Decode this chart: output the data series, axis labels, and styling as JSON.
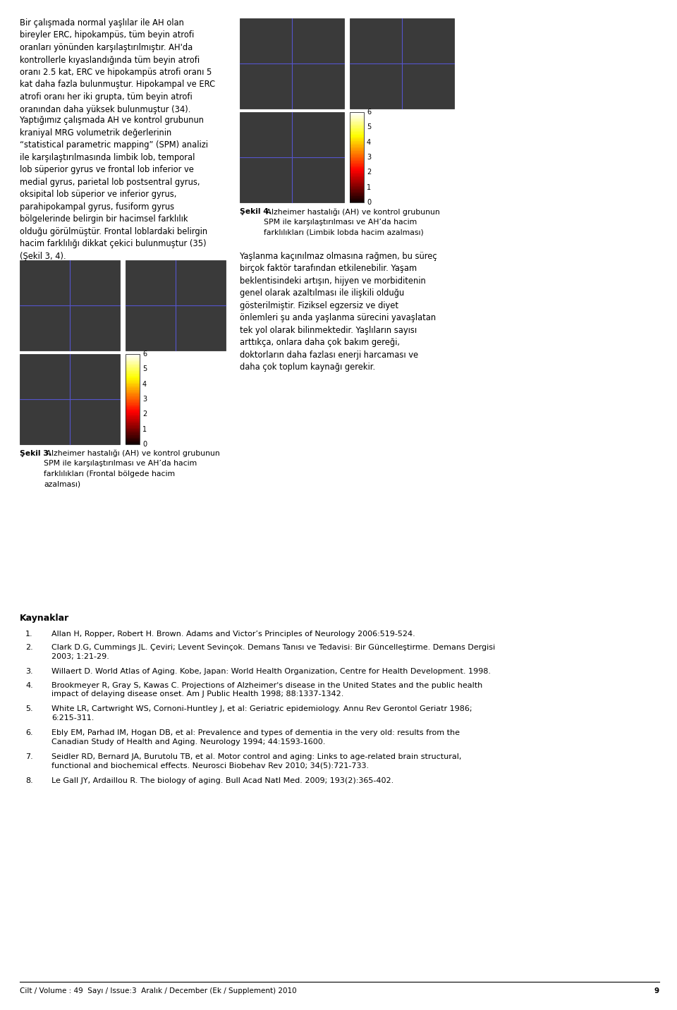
{
  "page_bg": "#ffffff",
  "text_color": "#000000",
  "font_size_body": 8.3,
  "font_size_caption": 7.8,
  "font_size_heading": 9.0,
  "font_size_footer": 7.5,
  "font_size_ref": 8.0,
  "para1": "Bir çalışmada normal yaşlılar ile AH olan bireyler ERC, hipokampüs, tüm beyin atrofi oranları yönünden karşılaştırılmıştır. AH'da kontrollerle kıyaslandığında tüm beyin atrofi oranı 2.5 kat, ERC ve hipokampüs atrofi oranı 5 kat daha fazla bulunmuştur. Hipokampal ve ERC atrofi oranı her iki grupta, tüm beyin atrofi oranından daha yüksek bulunmuştur (34).",
  "para2": "Yaptığımız çalışmada AH ve kontrol grubunun kraniyal MRG volumetrik değerlerinin “statistical parametric mapping” (SPM) analizi ile karşılaştırılmasında limbik lob, temporal lob süperior gyrus ve frontal lob inferior ve medial gyrus, parietal lob postsentral gyrus, oksipital lob süperior ve inferior gyrus, parahipokampal gyrus, fusiform gyrus bölgelerinde belirgin bir hacimsel farklılık olduğu görülmüştür. Frontal loblardaki belirgin hacim farklılığı dikkat çekici bulunmuştur (35) (Şekil 3, 4).",
  "sekil4_bold": "Şekil 4.",
  "sekil4_text": " Alzheimer hastalığı (AH) ve kontrol grubunun SPM ile karşılaştırılması ve AH’da hacim farklılıkları (Limbik lobda hacim azalması)",
  "para3": "Yaşlanma kaçınılmaz olmasına rağmen, bu süreç birçok faktör tarafından etkilenebilir. Yaşam beklentisindeki artışın, hijyen ve morbiditenin genel olarak azaltılması ile ilişkili olduğu gösterilmiştir. Fiziksel egzersiz ve diyet önlemleri şu anda yaşlanma sürecini yavaşlatan tek yol olarak bilinmektedir. Yaşlıların sayısı arttıkça, onlara daha çok bakım gereği, doktorların daha fazlası enerji harcaması ve daha çok toplum kaynağı gerekir.",
  "sekil3_bold": "Şekil 3.",
  "sekil3_text": " Alzheimer hastalığı (AH) ve kontrol grubunun SPM ile karşılaştırılması ve AH’da hacim farklılıkları (Frontal bölgede hacim azalması)",
  "kaynaklar_heading": "Kaynaklar",
  "references": [
    {
      "num": "1.",
      "text": "Allan H, Ropper, Robert H. Brown. Adams and Victor’s Principles of Neurology 2006:519-524."
    },
    {
      "num": "2.",
      "text": "Clark D.G, Cummings JL. Çeviri; Levent Sevinçok. Demans Tanısı ve Tedavisi: Bir Güncelleştirme. Demans Dergisi 2003; 1:21-29."
    },
    {
      "num": "3.",
      "text": "Willaert D. World Atlas of Aging. Kobe, Japan: World Health Organization, Centre for Health Development. 1998."
    },
    {
      "num": "4.",
      "text": "Brookmeyer R, Gray S, Kawas C. Projections of Alzheimer's disease in the United States and the public health impact of delaying disease onset. Am J Public Health 1998; 88:1337-1342."
    },
    {
      "num": "5.",
      "text": "White LR, Cartwright WS, Cornoni-Huntley J, et al: Geriatric epidemiology. Annu Rev Gerontol Geriatr 1986; 6:215-311."
    },
    {
      "num": "6.",
      "text": "Ebly EM, Parhad IM, Hogan DB, et al: Prevalence and types of dementia in the very old: results from the Canadian Study of Health and Aging. Neurology 1994; 44:1593-1600."
    },
    {
      "num": "7.",
      "text": "Seidler RD, Bernard JA, Burutolu TB, et al. Motor control and aging: Links to age-related brain structural, functional and biochemical effects. Neurosci Biobehav Rev 2010; 34(5):721-733."
    },
    {
      "num": "8.",
      "text": "Le Gall JY, Ardaillou R. The biology of aging. Bull Acad Natl Med. 2009; 193(2):365-402."
    }
  ],
  "footer_text": "Cilt / Volume : 49  Sayı / Issue:3  Aralık / December (Ek / Supplement) 2010",
  "footer_page": "9"
}
